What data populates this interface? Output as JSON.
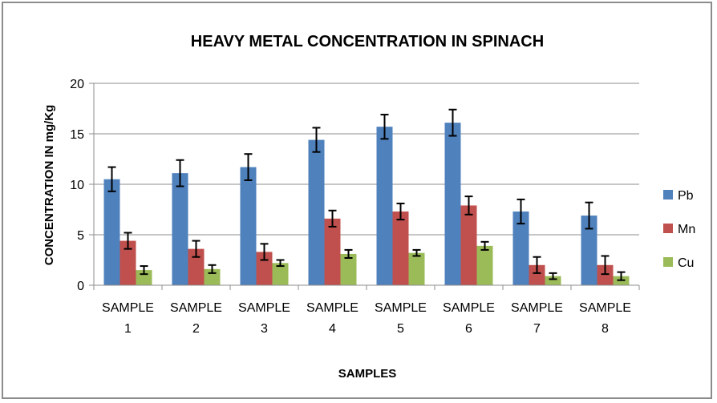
{
  "chart_data": {
    "type": "bar",
    "title": "HEAVY METAL CONCENTRATION IN SPINACH",
    "xlabel": "SAMPLES",
    "ylabel": "CONCENTRATION IN mg/Kg",
    "ylim": [
      0,
      20
    ],
    "yticks": [
      0,
      5,
      10,
      15,
      20
    ],
    "grid": true,
    "legend_position": "right",
    "categories": [
      [
        "SAMPLE",
        "1"
      ],
      [
        "SAMPLE",
        "2"
      ],
      [
        "SAMPLE",
        "3"
      ],
      [
        "SAMPLE",
        "4"
      ],
      [
        "SAMPLE",
        "5"
      ],
      [
        "SAMPLE",
        "6"
      ],
      [
        "SAMPLE",
        "7"
      ],
      [
        "SAMPLE",
        "8"
      ]
    ],
    "series": [
      {
        "name": "Pb",
        "color": "#4f81bd",
        "values": [
          10.5,
          11.1,
          11.7,
          14.4,
          15.7,
          16.1,
          7.3,
          6.9
        ],
        "errors": [
          1.2,
          1.3,
          1.3,
          1.2,
          1.2,
          1.3,
          1.2,
          1.3
        ]
      },
      {
        "name": "Mn",
        "color": "#c0504d",
        "values": [
          4.4,
          3.6,
          3.3,
          6.6,
          7.3,
          7.9,
          2.0,
          2.0
        ],
        "errors": [
          0.8,
          0.8,
          0.8,
          0.8,
          0.8,
          0.9,
          0.8,
          0.9
        ]
      },
      {
        "name": "Cu",
        "color": "#9bbb59",
        "values": [
          1.5,
          1.6,
          2.2,
          3.1,
          3.2,
          3.9,
          0.9,
          0.9
        ],
        "errors": [
          0.4,
          0.4,
          0.3,
          0.4,
          0.3,
          0.4,
          0.3,
          0.4
        ]
      }
    ]
  }
}
